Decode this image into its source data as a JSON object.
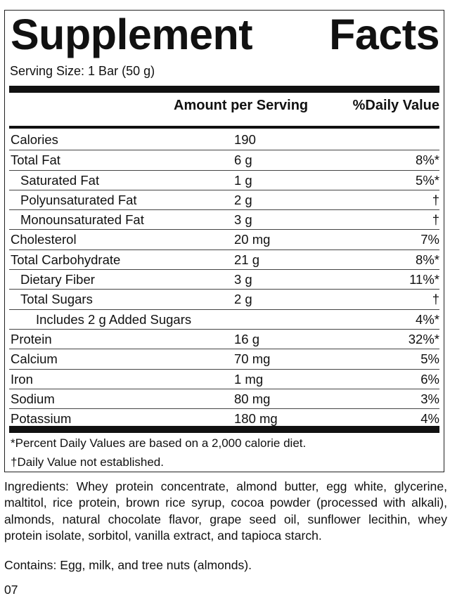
{
  "title_left": "Supplement",
  "title_right": "Facts",
  "serving_size": "Serving Size: 1 Bar (50 g)",
  "header": {
    "amount": "Amount per Serving",
    "daily_value": "%Daily Value"
  },
  "rows": [
    {
      "label": "Calories",
      "amount": "190",
      "dv": "",
      "indent": 0
    },
    {
      "label": "Total Fat",
      "amount": "6 g",
      "dv": "8%*",
      "indent": 0
    },
    {
      "label": "Saturated Fat",
      "amount": "1 g",
      "dv": "5%*",
      "indent": 1
    },
    {
      "label": "Polyunsaturated Fat",
      "amount": "2 g",
      "dv": "†",
      "indent": 1
    },
    {
      "label": "Monounsaturated Fat",
      "amount": "3 g",
      "dv": "†",
      "indent": 1
    },
    {
      "label": "Cholesterol",
      "amount": "20 mg",
      "dv": "7%",
      "indent": 0
    },
    {
      "label": "Total Carbohydrate",
      "amount": "21 g",
      "dv": "8%*",
      "indent": 0
    },
    {
      "label": "Dietary Fiber",
      "amount": "3 g",
      "dv": "11%*",
      "indent": 1
    },
    {
      "label": "Total Sugars",
      "amount": "2 g",
      "dv": "†",
      "indent": 1
    },
    {
      "label": "Includes 2 g Added Sugars",
      "amount": "",
      "dv": "4%*",
      "indent": 2
    },
    {
      "label": "Protein",
      "amount": "16 g",
      "dv": "32%*",
      "indent": 0
    },
    {
      "label": "Calcium",
      "amount": "70 mg",
      "dv": "5%",
      "indent": 0
    },
    {
      "label": "Iron",
      "amount": "1 mg",
      "dv": "6%",
      "indent": 0
    },
    {
      "label": "Sodium",
      "amount": "80 mg",
      "dv": "3%",
      "indent": 0
    },
    {
      "label": "Potassium",
      "amount": "180 mg",
      "dv": "4%",
      "indent": 0
    }
  ],
  "footnotes": {
    "percent_dv": "*Percent Daily Values are based on a 2,000 calorie diet.",
    "not_established": "†Daily Value not established."
  },
  "ingredients": "Ingredients: Whey protein concentrate, almond butter, egg white, glycerine, maltitol, rice protein, brown rice syrup, cocoa powder (processed with alkali), almonds, natural chocolate flavor, grape seed oil, sunflower lecithin, whey protein isolate, sorbitol, vanilla extract, and tapioca starch.",
  "contains": "Contains: Egg, milk, and tree nuts (almonds).",
  "code": "07"
}
